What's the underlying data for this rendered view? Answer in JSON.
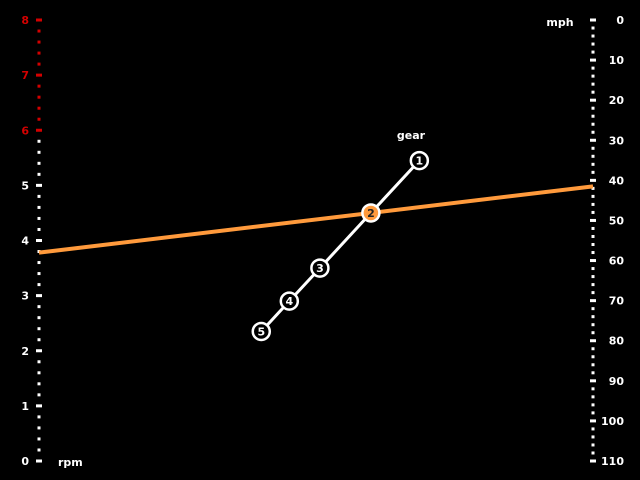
{
  "chart_data": {
    "type": "line",
    "left_axis": {
      "label": "rpm",
      "ticks": [
        "0",
        "1",
        "2",
        "3",
        "4",
        "5",
        "6",
        "7",
        "8"
      ],
      "range": [
        0,
        8
      ],
      "redline_from": 6
    },
    "right_axis": {
      "label": "mph",
      "ticks": [
        "0",
        "10",
        "20",
        "30",
        "40",
        "50",
        "60",
        "70",
        "80",
        "90",
        "100",
        "110"
      ],
      "range": [
        0,
        110
      ],
      "inverted": true
    },
    "gear_label": "gear",
    "gears": [
      {
        "label": "1",
        "rpm": 5.45,
        "selected": false
      },
      {
        "label": "2",
        "rpm": 4.5,
        "selected": true
      },
      {
        "label": "3",
        "rpm": 3.5,
        "selected": false
      },
      {
        "label": "4",
        "rpm": 2.9,
        "selected": false
      },
      {
        "label": "5",
        "rpm": 2.35,
        "selected": false
      }
    ],
    "speed_line": {
      "rpm_at_left": 3.78,
      "mph_at_right": 41.5
    },
    "colors": {
      "background": "#000000",
      "axis": "#ffffff",
      "redline": "#d40000",
      "speed_line": "#ff9a3c",
      "gear_line": "#ffffff",
      "selected_gear": "#ff9a3c"
    }
  }
}
